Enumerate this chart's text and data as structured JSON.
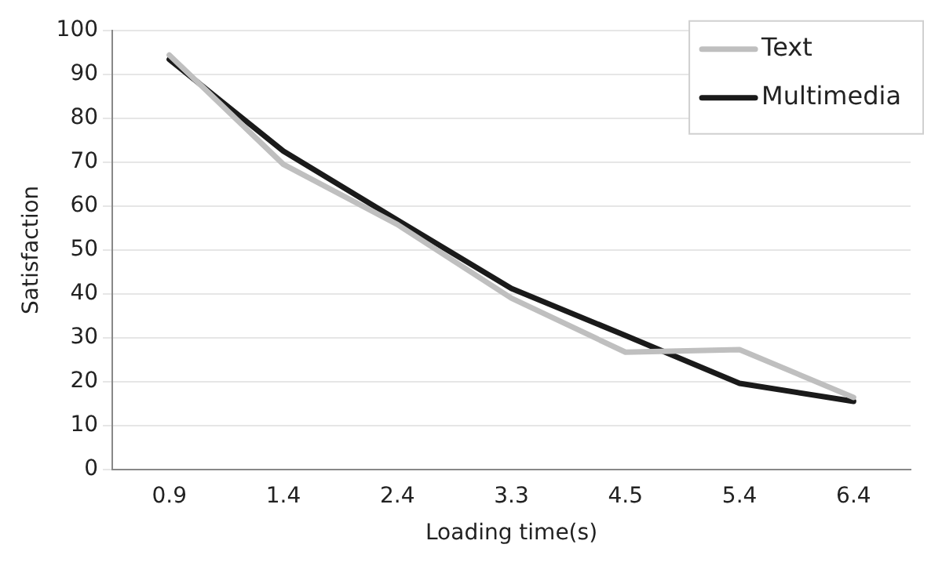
{
  "chart_data": {
    "type": "line",
    "xlabel": "Loading time(s)",
    "ylabel": "Satisfaction",
    "categories": [
      "0.9",
      "1.4",
      "2.4",
      "3.3",
      "4.5",
      "5.4",
      "6.4"
    ],
    "series": [
      {
        "name": "Text",
        "color": "#bfbfbf",
        "values": [
          94.4,
          69.5,
          55.8,
          39,
          26.7,
          27.3,
          16.4
        ]
      },
      {
        "name": "Multimedia",
        "color": "#1a1a1a",
        "values": [
          93.4,
          72.5,
          56.8,
          41.2,
          30.5,
          19.6,
          15.5
        ]
      }
    ],
    "ylim": [
      0,
      100
    ],
    "yticks": [
      0,
      10,
      20,
      30,
      40,
      50,
      60,
      70,
      80,
      90,
      100
    ],
    "grid": "y",
    "legend": "top right",
    "marker": "none",
    "line_style": "solid"
  }
}
